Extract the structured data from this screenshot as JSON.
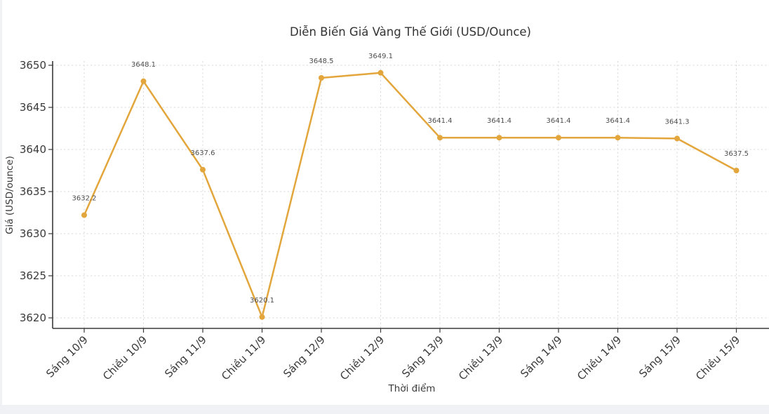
{
  "page": {
    "background": "#eff1f4",
    "canvas_background": "#ffffff"
  },
  "colors": {
    "line": "#E3A63C",
    "grid": "#d9d9d9",
    "axis": "#3a3a3a",
    "tick_text": "#3a3a3a",
    "data_label_text": "#4d4d4d",
    "title_text": "#333333"
  },
  "chart_data": {
    "type": "line",
    "title": "Diễn Biến Giá Vàng Thế Giới (USD/Ounce)",
    "xlabel": "Thời điểm",
    "ylabel": "Giá (USD/ounce)",
    "categories": [
      "Sáng 10/9",
      "Chiều 10/9",
      "Sáng 11/9",
      "Chiều 11/9",
      "Sáng 12/9",
      "Chiều 12/9",
      "Sáng 13/9",
      "Chiều 13/9",
      "Sáng 14/9",
      "Chiều 14/9",
      "Sáng 15/9",
      "Chiều 15/9"
    ],
    "values": [
      3632.2,
      3648.1,
      3637.6,
      3620.1,
      3648.5,
      3649.1,
      3641.4,
      3641.4,
      3641.4,
      3641.4,
      3641.3,
      3637.5
    ],
    "point_labels": [
      "3632.2",
      "3648.1",
      "3637.6",
      "3620.1",
      "3648.5",
      "3649.1",
      "3641.4",
      "3641.4",
      "3641.4",
      "3641.4",
      "3641.3",
      "3637.5"
    ],
    "y_ticks": [
      3620,
      3625,
      3630,
      3635,
      3640,
      3645,
      3650
    ],
    "ylim": [
      3618.8,
      3650.5
    ],
    "grid": true,
    "grid_style": "dashed",
    "legend_position": "none",
    "marker": "circle",
    "x_tick_rotation": 45
  }
}
